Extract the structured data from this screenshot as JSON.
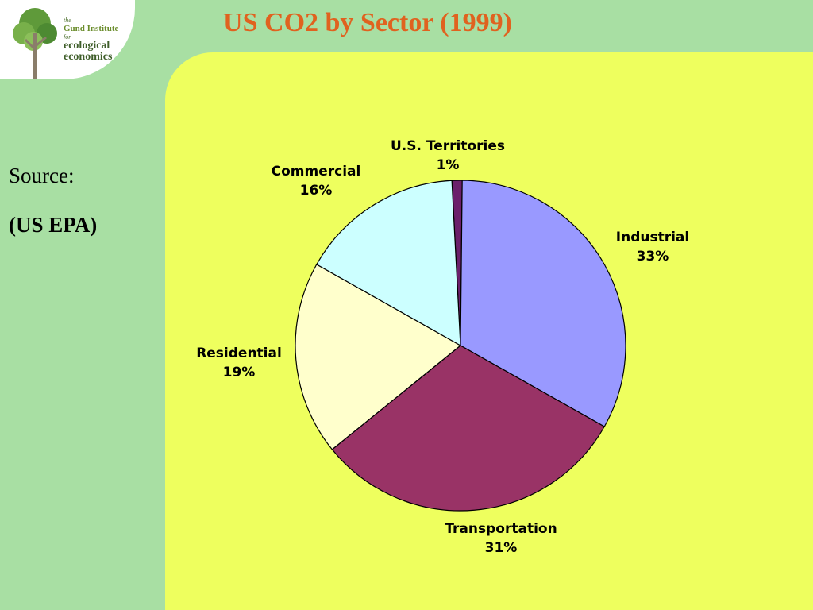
{
  "slide": {
    "title": "US CO2 by Sector (1999)",
    "source_label": "Source:",
    "source_value": "(US EPA)"
  },
  "logo": {
    "line1": "the",
    "line2": "Gund Institute",
    "line3": "for",
    "line4": "ecological",
    "line5": "economics"
  },
  "colors": {
    "background": "#a8dfa3",
    "panel": "#eeff5e",
    "title": "#e0621f"
  },
  "chart_data": {
    "type": "pie",
    "title": "",
    "slices": [
      {
        "label": "U.S. Territories",
        "percent_label": "1%",
        "value": 1,
        "color": "#6b1f6b"
      },
      {
        "label": "Industrial",
        "percent_label": "33%",
        "value": 33,
        "color": "#9999ff"
      },
      {
        "label": "Transportation",
        "percent_label": "31%",
        "value": 31,
        "color": "#993366"
      },
      {
        "label": "Residential",
        "percent_label": "19%",
        "value": 19,
        "color": "#ffffcc"
      },
      {
        "label": "Commercial",
        "percent_label": "16%",
        "value": 16,
        "color": "#ccffff"
      }
    ]
  }
}
